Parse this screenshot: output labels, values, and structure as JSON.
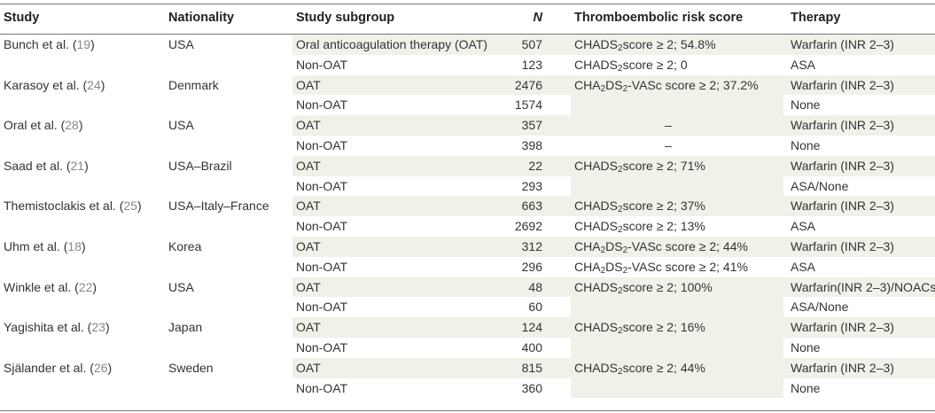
{
  "headers": {
    "study": "Study",
    "nationality": "Nationality",
    "subgroup": "Study subgroup",
    "n": "N",
    "risk": "Thromboembolic risk score",
    "therapy": "Therapy"
  },
  "studies": [
    {
      "author": "Bunch et al. (",
      "ref": "19",
      "close": ")",
      "nationality": "USA",
      "rows": [
        {
          "subgroup": "Oral anticoagulation therapy (OAT)",
          "n": "507",
          "risk": [
            "CHADS",
            "2",
            "score ≥ 2; 54.8%"
          ],
          "therapy": "Warfarin (INR 2–3)"
        },
        {
          "subgroup": "Non-OAT",
          "n": "123",
          "risk": [
            "CHADS",
            "2",
            "score ≥ 2; 0"
          ],
          "therapy": "ASA"
        }
      ]
    },
    {
      "author": "Karasoy et al. (",
      "ref": "24",
      "close": ")",
      "nationality": "Denmark",
      "rows": [
        {
          "subgroup": "OAT",
          "n": "2476",
          "risk": [
            "CHA",
            "2",
            "DS",
            "2",
            "-VASc score ≥ 2; 37.2%"
          ],
          "therapy": "Warfarin (INR 2–3)"
        },
        {
          "subgroup": "Non-OAT",
          "n": "1574",
          "risk": [],
          "therapy": "None"
        }
      ]
    },
    {
      "author": "Oral et al. (",
      "ref": "28",
      "close": ")",
      "nationality": "USA",
      "rows": [
        {
          "subgroup": "OAT",
          "n": "357",
          "risk_dash": "–",
          "therapy": "Warfarin (INR 2–3)"
        },
        {
          "subgroup": "Non-OAT",
          "n": "398",
          "risk_dash": "–",
          "therapy": "None"
        }
      ]
    },
    {
      "author": "Saad et al. (",
      "ref": "21",
      "close": ")",
      "nationality": "USA–Brazil",
      "rows": [
        {
          "subgroup": "OAT",
          "n": "22",
          "risk": [
            "CHADS",
            "2",
            "score ≥ 2; 71%"
          ],
          "therapy": "Warfarin (INR 2–3)"
        },
        {
          "subgroup": "Non-OAT",
          "n": "293",
          "risk": [],
          "therapy": "ASA/None"
        }
      ]
    },
    {
      "author": "Themistoclakis et al. (",
      "ref": "25",
      "close": ")",
      "nationality": "USA–Italy–France",
      "rows": [
        {
          "subgroup": "OAT",
          "n": "663",
          "risk": [
            "CHADS",
            "2",
            "score ≥ 2; 37%"
          ],
          "therapy": "Warfarin (INR 2–3)"
        },
        {
          "subgroup": "Non-OAT",
          "n": "2692",
          "risk": [
            "CHADS",
            "2",
            "score ≥ 2; 13%"
          ],
          "therapy": "ASA"
        }
      ]
    },
    {
      "author": "Uhm et al. (",
      "ref": "18",
      "close": ")",
      "nationality": "Korea",
      "rows": [
        {
          "subgroup": "OAT",
          "n": "312",
          "risk": [
            "CHA",
            "2",
            "DS",
            "2",
            "-VASc score ≥ 2; 44%"
          ],
          "therapy": "Warfarin (INR 2–3)"
        },
        {
          "subgroup": "Non-OAT",
          "n": "296",
          "risk": [
            "CHA",
            "2",
            "DS",
            "2",
            "-VASc score ≥ 2; 41%"
          ],
          "therapy": "ASA"
        }
      ]
    },
    {
      "author": "Winkle et al. (",
      "ref": "22",
      "close": ")",
      "nationality": "USA",
      "rows": [
        {
          "subgroup": "OAT",
          "n": "48",
          "risk": [
            "CHADS",
            "2",
            "score ≥ 2; 100%"
          ],
          "therapy": "Warfarin(INR 2–3)/NOACs"
        },
        {
          "subgroup": "Non-OAT",
          "n": "60",
          "risk": [],
          "therapy": "ASA/None"
        }
      ]
    },
    {
      "author": "Yagishita et al. (",
      "ref": "23",
      "close": ")",
      "nationality": "Japan",
      "rows": [
        {
          "subgroup": "OAT",
          "n": "124",
          "risk": [
            "CHADS",
            "2",
            "score ≥ 2; 16%"
          ],
          "therapy": "Warfarin (INR 2–3)"
        },
        {
          "subgroup": "Non-OAT",
          "n": "400",
          "risk": [],
          "therapy": "None"
        }
      ]
    },
    {
      "author": "Själander et al. (",
      "ref": "26",
      "close": ")",
      "nationality": "Sweden",
      "rows": [
        {
          "subgroup": "OAT",
          "n": "815",
          "risk": [
            "CHADS",
            "2",
            "score ≥ 2; 44%"
          ],
          "therapy": "Warfarin (INR 2–3)"
        },
        {
          "subgroup": "Non-OAT",
          "n": "360",
          "risk": [],
          "therapy": "None"
        }
      ]
    }
  ]
}
